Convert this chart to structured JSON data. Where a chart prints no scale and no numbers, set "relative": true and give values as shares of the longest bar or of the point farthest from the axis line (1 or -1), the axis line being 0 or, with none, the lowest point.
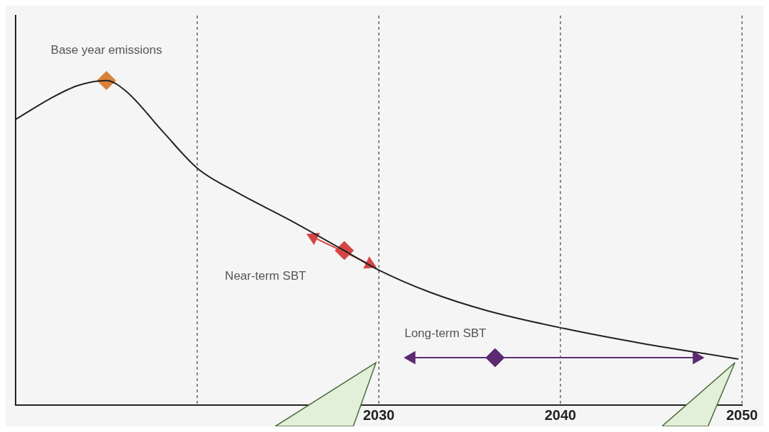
{
  "chart_data": {
    "type": "line",
    "relative": true,
    "xlim": [
      2010,
      2050
    ],
    "xticks": [
      {
        "value": 2020,
        "label": null
      },
      2030,
      2040,
      2050
    ],
    "grid": "x",
    "legend": false,
    "series": [
      {
        "color": "#222222",
        "marker": "none",
        "x": [
          2010,
          2011.9,
          2013.4,
          2015,
          2016.1,
          2018.1,
          2020,
          2022.3,
          2025,
          2028.1,
          2030,
          2032.8,
          2035.9,
          2040.2,
          2044.4,
          2049.8
        ],
        "values": [
          0.88,
          0.944,
          0.984,
          1.0,
          0.966,
          0.843,
          0.73,
          0.652,
          0.573,
          0.476,
          0.416,
          0.348,
          0.292,
          0.236,
          0.191,
          0.142
        ]
      },
      {
        "type": "scatter",
        "color": "#d9813a",
        "marker": "diamond",
        "x": [
          2015
        ],
        "values": [
          1.0
        ]
      },
      {
        "type": "line",
        "color": "#d64545",
        "marker": "triangle",
        "x": [
          2026.4,
          2029.5
        ],
        "values": [
          0.517,
          0.434
        ]
      },
      {
        "type": "scatter",
        "color": "#d64545",
        "marker": "diamond",
        "x": [
          2028.1
        ],
        "values": [
          0.476
        ]
      },
      {
        "type": "line",
        "color": "#5c2a72",
        "marker": "triangle",
        "x": [
          2031.8,
          2047.5
        ],
        "values": [
          0.146,
          0.146
        ]
      },
      {
        "type": "scatter",
        "color": "#5c2a72",
        "marker": "diamond",
        "x": [
          2036.4
        ],
        "values": [
          0.146
        ]
      }
    ],
    "annotations": [
      {
        "text": "Base year emissions",
        "x": 2015,
        "y": 1.0
      },
      "Near-term SBT",
      {
        "text": "Long-term SBT",
        "x": 2036.4,
        "y": 0.146
      }
    ]
  }
}
